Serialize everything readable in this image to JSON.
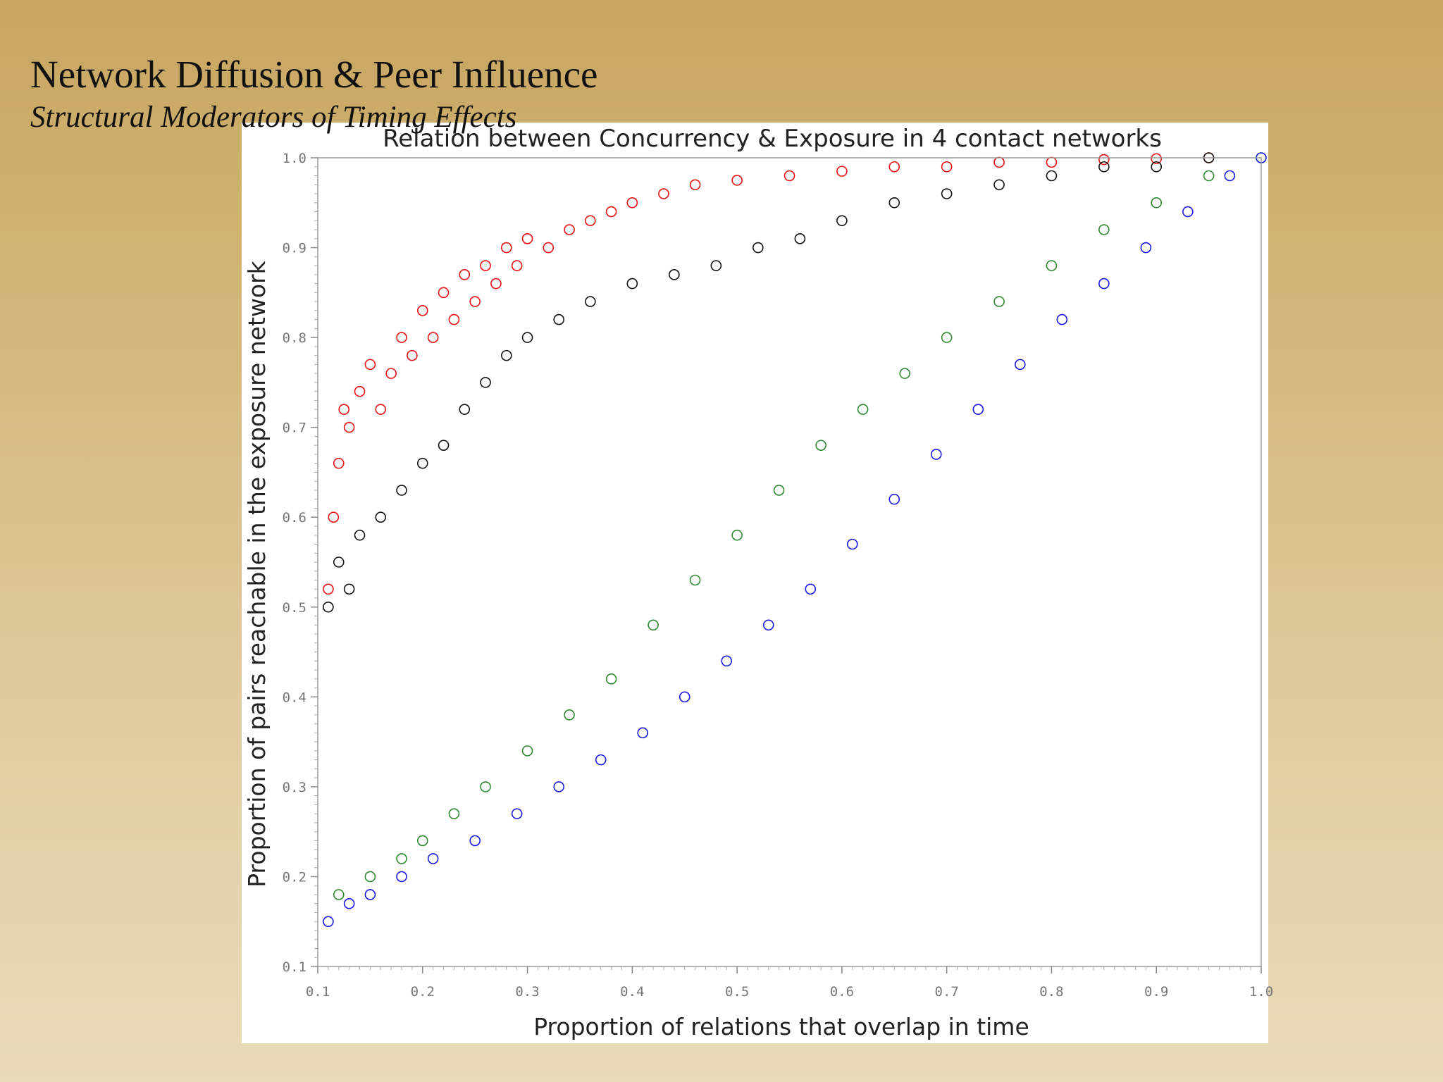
{
  "slide": {
    "title": "Network Diffusion & Peer Influence",
    "subtitle": "Structural Moderators of Timing Effects"
  },
  "chart_data": {
    "type": "scatter",
    "title": "Relation between Concurrency & Exposure in 4 contact networks",
    "xlabel": "Proportion of relations that overlap in time",
    "ylabel": "Proportion of pairs reachable in the exposure network",
    "xlim": [
      0.1,
      1.0
    ],
    "ylim": [
      0.1,
      1.0
    ],
    "xticks": [
      "0.1",
      "0.2",
      "0.3",
      "0.4",
      "0.5",
      "0.6",
      "0.7",
      "0.8",
      "0.9",
      "1.0"
    ],
    "yticks": [
      "0.1",
      "0.2",
      "0.3",
      "0.4",
      "0.5",
      "0.6",
      "0.7",
      "0.8",
      "0.9",
      "1.0"
    ],
    "grid": false,
    "legend": null,
    "marker": "open-circle",
    "series": [
      {
        "color": "#e81010",
        "points": [
          [
            0.11,
            0.52
          ],
          [
            0.115,
            0.6
          ],
          [
            0.12,
            0.66
          ],
          [
            0.125,
            0.72
          ],
          [
            0.13,
            0.7
          ],
          [
            0.14,
            0.74
          ],
          [
            0.15,
            0.77
          ],
          [
            0.16,
            0.72
          ],
          [
            0.17,
            0.76
          ],
          [
            0.18,
            0.8
          ],
          [
            0.19,
            0.78
          ],
          [
            0.2,
            0.83
          ],
          [
            0.21,
            0.8
          ],
          [
            0.22,
            0.85
          ],
          [
            0.23,
            0.82
          ],
          [
            0.24,
            0.87
          ],
          [
            0.25,
            0.84
          ],
          [
            0.26,
            0.88
          ],
          [
            0.27,
            0.86
          ],
          [
            0.28,
            0.9
          ],
          [
            0.29,
            0.88
          ],
          [
            0.3,
            0.91
          ],
          [
            0.32,
            0.9
          ],
          [
            0.34,
            0.92
          ],
          [
            0.36,
            0.93
          ],
          [
            0.38,
            0.94
          ],
          [
            0.4,
            0.95
          ],
          [
            0.43,
            0.96
          ],
          [
            0.46,
            0.97
          ],
          [
            0.5,
            0.975
          ],
          [
            0.55,
            0.98
          ],
          [
            0.6,
            0.985
          ],
          [
            0.65,
            0.99
          ],
          [
            0.7,
            0.99
          ],
          [
            0.75,
            0.995
          ],
          [
            0.8,
            0.995
          ],
          [
            0.85,
            0.998
          ],
          [
            0.9,
            0.999
          ],
          [
            0.95,
            1.0
          ]
        ]
      },
      {
        "color": "#111111",
        "points": [
          [
            0.11,
            0.5
          ],
          [
            0.12,
            0.55
          ],
          [
            0.13,
            0.52
          ],
          [
            0.14,
            0.58
          ],
          [
            0.16,
            0.6
          ],
          [
            0.18,
            0.63
          ],
          [
            0.2,
            0.66
          ],
          [
            0.22,
            0.68
          ],
          [
            0.24,
            0.72
          ],
          [
            0.26,
            0.75
          ],
          [
            0.28,
            0.78
          ],
          [
            0.3,
            0.8
          ],
          [
            0.33,
            0.82
          ],
          [
            0.36,
            0.84
          ],
          [
            0.4,
            0.86
          ],
          [
            0.44,
            0.87
          ],
          [
            0.48,
            0.88
          ],
          [
            0.52,
            0.9
          ],
          [
            0.56,
            0.91
          ],
          [
            0.6,
            0.93
          ],
          [
            0.65,
            0.95
          ],
          [
            0.7,
            0.96
          ],
          [
            0.75,
            0.97
          ],
          [
            0.8,
            0.98
          ],
          [
            0.85,
            0.99
          ],
          [
            0.9,
            0.99
          ],
          [
            0.95,
            1.0
          ]
        ]
      },
      {
        "color": "#2f8a2f",
        "points": [
          [
            0.12,
            0.18
          ],
          [
            0.15,
            0.2
          ],
          [
            0.18,
            0.22
          ],
          [
            0.2,
            0.24
          ],
          [
            0.23,
            0.27
          ],
          [
            0.26,
            0.3
          ],
          [
            0.3,
            0.34
          ],
          [
            0.34,
            0.38
          ],
          [
            0.38,
            0.42
          ],
          [
            0.42,
            0.48
          ],
          [
            0.46,
            0.53
          ],
          [
            0.5,
            0.58
          ],
          [
            0.54,
            0.63
          ],
          [
            0.58,
            0.68
          ],
          [
            0.62,
            0.72
          ],
          [
            0.66,
            0.76
          ],
          [
            0.7,
            0.8
          ],
          [
            0.75,
            0.84
          ],
          [
            0.8,
            0.88
          ],
          [
            0.85,
            0.92
          ],
          [
            0.9,
            0.95
          ],
          [
            0.95,
            0.98
          ],
          [
            1.0,
            1.0
          ]
        ]
      },
      {
        "color": "#1a1ae0",
        "points": [
          [
            0.11,
            0.15
          ],
          [
            0.13,
            0.17
          ],
          [
            0.15,
            0.18
          ],
          [
            0.18,
            0.2
          ],
          [
            0.21,
            0.22
          ],
          [
            0.25,
            0.24
          ],
          [
            0.29,
            0.27
          ],
          [
            0.33,
            0.3
          ],
          [
            0.37,
            0.33
          ],
          [
            0.41,
            0.36
          ],
          [
            0.45,
            0.4
          ],
          [
            0.49,
            0.44
          ],
          [
            0.53,
            0.48
          ],
          [
            0.57,
            0.52
          ],
          [
            0.61,
            0.57
          ],
          [
            0.65,
            0.62
          ],
          [
            0.69,
            0.67
          ],
          [
            0.73,
            0.72
          ],
          [
            0.77,
            0.77
          ],
          [
            0.81,
            0.82
          ],
          [
            0.85,
            0.86
          ],
          [
            0.89,
            0.9
          ],
          [
            0.93,
            0.94
          ],
          [
            0.97,
            0.98
          ],
          [
            1.0,
            1.0
          ]
        ]
      }
    ]
  }
}
